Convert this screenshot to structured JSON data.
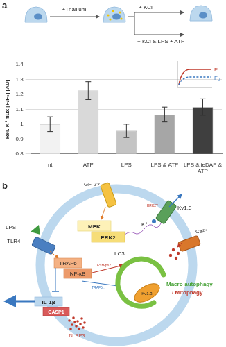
{
  "chart_data": {
    "type": "bar",
    "categories": [
      "nt",
      "ATP",
      "LPS",
      "LPS & ATP",
      "LPS & ieDAP & ATP"
    ],
    "values": [
      1.0,
      1.225,
      0.955,
      1.065,
      1.115
    ],
    "errors": [
      0.05,
      0.06,
      0.045,
      0.05,
      0.055
    ],
    "colors": [
      "#f2f2f2",
      "#d9d9d9",
      "#c4c4c4",
      "#a6a6a6",
      "#3f3f3f"
    ],
    "ylabel": "Rel. K⁺ flux [F/F₀] [AU]",
    "ylim": [
      0.8,
      1.4
    ],
    "yticks": [
      0.8,
      0.9,
      1,
      1.1,
      1.2,
      1.3,
      1.4
    ],
    "grid": true
  },
  "panel_labels": {
    "a": "a",
    "b": "b"
  },
  "schematic": {
    "thallium": "+Thallium",
    "kcl": "+ KCl",
    "kcl_lps_atp": "+ KCl & LPS + ATP",
    "inset_f": "F",
    "inset_f0": "F₀"
  },
  "diagram": {
    "tgf": "TGF-β?",
    "mek": "MEK",
    "erk2": "ERK2",
    "kv13": "Kv1.3",
    "erk2_q": "ERK2?",
    "k": "K⁺",
    "ca": "Ca²⁺",
    "lps": "LPS",
    "tlr4": "TLR4",
    "traf6": "TRAF6",
    "nfkb": "NF-κB",
    "fsh_p62": "FSH-p62",
    "traf6_b": "TRAF6...",
    "lc3": "LC3",
    "kv13_mito": "Kv1.3",
    "macro": "Macro-autophagy",
    "mito": "/ Mitophagy",
    "il1b": "IL-1β",
    "casp1": "CASP1",
    "nlrp3": "NLRP3"
  }
}
